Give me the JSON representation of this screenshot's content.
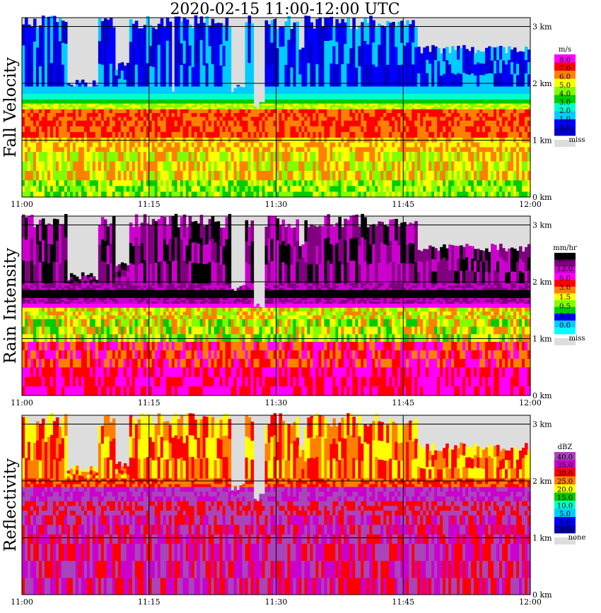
{
  "title": "2020-02-15   11:00-12:00 UTC",
  "x_ticks": [
    "11:00",
    "11:15",
    "11:30",
    "11:45",
    "12:00"
  ],
  "height_ticks": [
    "0 km",
    "1 km",
    "2 km",
    "3 km"
  ],
  "chart_data": [
    {
      "type": "heatmap",
      "ylabel": "Fall Velocity",
      "colorbar_unit": "m/s",
      "colorbar_labels": [
        "8.0",
        "7.0",
        "6.0",
        "5.0",
        "4.0",
        "3.0",
        "2.0",
        "1.0",
        "0.0"
      ],
      "colorbar_colors": [
        "#ff00ff",
        "#ff0000",
        "#ff8000",
        "#ffff00",
        "#80ff00",
        "#00cc00",
        "#00ffcc",
        "#00ccff",
        "#0000ff",
        "#0000cc"
      ],
      "missing_label": "miss",
      "missing_color": "#dddddd",
      "ylim_km": [
        0,
        3.2
      ],
      "layers": [
        {
          "from_km": 0.0,
          "to_km": 0.3,
          "colors": [
            "#80ff00",
            "#ffff00",
            "#00cc00"
          ]
        },
        {
          "from_km": 0.3,
          "to_km": 0.8,
          "colors": [
            "#ffff00",
            "#ff8000",
            "#80ff00"
          ]
        },
        {
          "from_km": 0.8,
          "to_km": 1.05,
          "colors": [
            "#ff8000",
            "#ffff00"
          ]
        },
        {
          "from_km": 1.05,
          "to_km": 1.35,
          "colors": [
            "#ff8000",
            "#ff0000"
          ]
        },
        {
          "from_km": 1.35,
          "to_km": 1.55,
          "colors": [
            "#ff0000",
            "#ff8000"
          ]
        },
        {
          "from_km": 1.55,
          "to_km": 1.65,
          "colors": [
            "#ffff00",
            "#80ff00"
          ]
        },
        {
          "from_km": 1.65,
          "to_km": 1.72,
          "colors": [
            "#00cc00"
          ]
        },
        {
          "from_km": 1.72,
          "to_km": 1.82,
          "colors": [
            "#00ffcc"
          ]
        },
        {
          "from_km": 1.82,
          "to_km": 1.95,
          "colors": [
            "#00ccff"
          ]
        },
        {
          "from_km": 1.95,
          "to_km": 3.2,
          "colors": [
            "#0000ff",
            "#00ccff",
            "#0000cc"
          ]
        }
      ],
      "gaps": [
        {
          "from": 0.09,
          "to": 0.15,
          "above_km": 2.0
        },
        {
          "from": 0.185,
          "to": 0.21,
          "above_km": 2.3
        },
        {
          "from": 0.295,
          "to": 0.3,
          "above_km": 1.9
        },
        {
          "from": 0.41,
          "to": 0.44,
          "above_km": 1.9
        },
        {
          "from": 0.455,
          "to": 0.48,
          "above_km": 1.6
        },
        {
          "from": 0.545,
          "to": 0.555,
          "above_km": 2.6
        },
        {
          "from": 0.7,
          "to": 0.78,
          "above_km": 3.05
        },
        {
          "from": 0.78,
          "to": 1.0,
          "above_km": 2.6
        }
      ]
    },
    {
      "type": "heatmap",
      "ylabel": "Rain Intensity",
      "colorbar_unit": "mm/hr",
      "colorbar_labels": [
        "48.0",
        "12.0",
        "6.0",
        "3.0",
        "1.5",
        "0.5",
        "0.1",
        "0.0"
      ],
      "colorbar_colors": [
        "#000000",
        "#800080",
        "#cc00cc",
        "#ff00ff",
        "#ff0000",
        "#ff8000",
        "#ffff00",
        "#80ff00",
        "#00cc00",
        "#0000ff",
        "#00ccff",
        "#00ffff"
      ],
      "missing_label": "miss",
      "missing_color": "#dddddd",
      "ylim_km": [
        0,
        3.2
      ],
      "layers": [
        {
          "from_km": 0.0,
          "to_km": 0.5,
          "colors": [
            "#ff00ff",
            "#ff0000"
          ]
        },
        {
          "from_km": 0.5,
          "to_km": 0.95,
          "colors": [
            "#ff0000",
            "#ff00ff",
            "#ff8000"
          ]
        },
        {
          "from_km": 0.95,
          "to_km": 1.35,
          "colors": [
            "#ffff00",
            "#80ff00",
            "#00cc00",
            "#ff8000"
          ]
        },
        {
          "from_km": 1.35,
          "to_km": 1.55,
          "colors": [
            "#ffff00",
            "#ff8000",
            "#80ff00"
          ]
        },
        {
          "from_km": 1.55,
          "to_km": 1.62,
          "colors": [
            "#ff00ff"
          ]
        },
        {
          "from_km": 1.62,
          "to_km": 1.72,
          "colors": [
            "#cc00cc",
            "#800080"
          ]
        },
        {
          "from_km": 1.72,
          "to_km": 1.86,
          "colors": [
            "#000000"
          ]
        },
        {
          "from_km": 1.86,
          "to_km": 1.98,
          "colors": [
            "#800080",
            "#cc00cc"
          ]
        },
        {
          "from_km": 1.98,
          "to_km": 3.2,
          "colors": [
            "#800080",
            "#cc00cc",
            "#000000"
          ]
        }
      ],
      "gaps": [
        {
          "from": 0.09,
          "to": 0.15,
          "above_km": 2.1
        },
        {
          "from": 0.185,
          "to": 0.21,
          "above_km": 2.3
        },
        {
          "from": 0.41,
          "to": 0.44,
          "above_km": 1.9
        },
        {
          "from": 0.455,
          "to": 0.48,
          "above_km": 1.6
        },
        {
          "from": 0.545,
          "to": 0.555,
          "above_km": 2.6
        },
        {
          "from": 0.7,
          "to": 0.78,
          "above_km": 3.05
        },
        {
          "from": 0.78,
          "to": 1.0,
          "above_km": 2.6
        }
      ]
    },
    {
      "type": "heatmap",
      "ylabel": "Reflectivity",
      "colorbar_unit": "dBZ",
      "colorbar_labels": [
        "40.0",
        "35.0",
        "30.0",
        "25.0",
        "20.0",
        "15.0",
        "10.0",
        "5.0",
        "0.0",
        "-5.0"
      ],
      "colorbar_colors": [
        "#aa44bb",
        "#cc00cc",
        "#ff0000",
        "#ff8000",
        "#ffff00",
        "#00cc00",
        "#00ffcc",
        "#00ccff",
        "#0000ff",
        "#0000aa"
      ],
      "missing_label": "none",
      "missing_color": "#dddddd",
      "ylim_km": [
        0,
        3.2
      ],
      "layers": [
        {
          "from_km": 0.0,
          "to_km": 0.9,
          "colors": [
            "#aa44bb",
            "#cc00cc",
            "#ff0000"
          ]
        },
        {
          "from_km": 0.9,
          "to_km": 1.4,
          "colors": [
            "#ff0000",
            "#aa44bb",
            "#cc00cc"
          ]
        },
        {
          "from_km": 1.4,
          "to_km": 1.65,
          "colors": [
            "#aa44bb",
            "#ff0000"
          ]
        },
        {
          "from_km": 1.65,
          "to_km": 1.9,
          "colors": [
            "#cc00cc",
            "#aa44bb"
          ]
        },
        {
          "from_km": 1.9,
          "to_km": 2.05,
          "colors": [
            "#ff0000",
            "#ff8000"
          ]
        },
        {
          "from_km": 2.05,
          "to_km": 3.2,
          "colors": [
            "#ff8000",
            "#ff0000",
            "#ffff00"
          ]
        }
      ],
      "gaps": [
        {
          "from": 0.09,
          "to": 0.15,
          "above_km": 2.2
        },
        {
          "from": 0.185,
          "to": 0.21,
          "above_km": 2.3
        },
        {
          "from": 0.41,
          "to": 0.44,
          "above_km": 1.9
        },
        {
          "from": 0.455,
          "to": 0.48,
          "above_km": 1.7
        },
        {
          "from": 0.545,
          "to": 0.555,
          "above_km": 2.6
        },
        {
          "from": 0.7,
          "to": 0.78,
          "above_km": 3.05
        },
        {
          "from": 0.78,
          "to": 1.0,
          "above_km": 2.6
        }
      ]
    }
  ]
}
